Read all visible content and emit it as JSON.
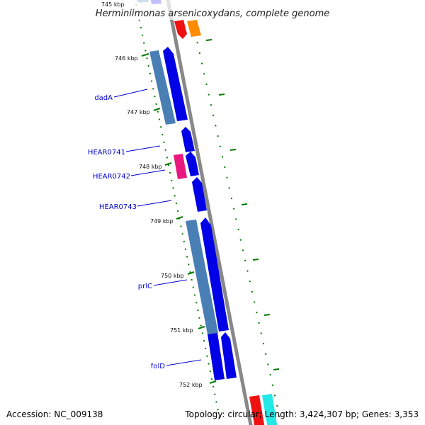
{
  "title": "Herminiimonas arsenicoxydans, complete genome",
  "footer": {
    "accession": "Accession: NC_009138",
    "topology": "Topology: circular; Length: 3,424,307 bp; Genes: 3,353"
  },
  "colors": {
    "backbone": "#888888",
    "cds_forward": "#0000e6",
    "gene_forward": "#4a7fb5",
    "cds_reverse_red": "#ee1111",
    "cds_orange": "#ff8c00",
    "pink": "#e8187f",
    "cyan": "#22e8e8",
    "tick": "#007a00",
    "label": "#0000cc"
  },
  "kbp_labels": [
    "745 kbp",
    "746 kbp",
    "747 kbp",
    "748 kbp",
    "749 kbp",
    "750 kbp",
    "751 kbp",
    "752 kbp"
  ],
  "gene_labels": [
    "dadA",
    "HEAR0741",
    "HEAR0742",
    "HEAR0743",
    "prlC",
    "folD"
  ]
}
